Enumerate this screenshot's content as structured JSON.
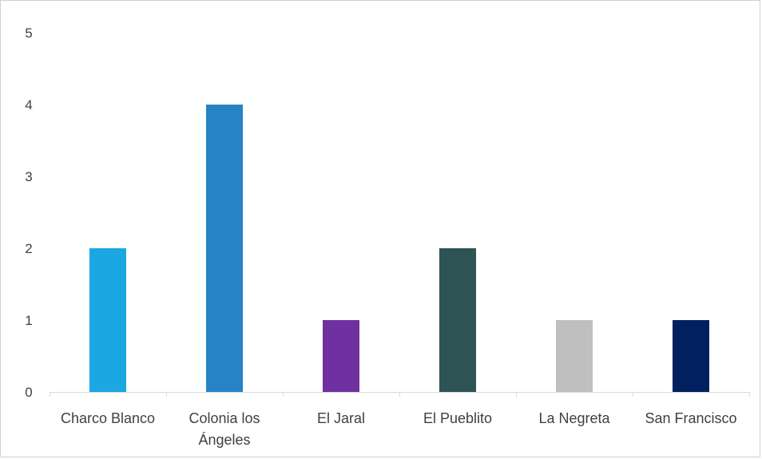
{
  "chart_data": {
    "type": "bar",
    "title": "",
    "xlabel": "",
    "ylabel": "",
    "categories": [
      "Charco Blanco",
      "Colonia los Ángeles",
      "El Jaral",
      "El Pueblito",
      "La Negreta",
      "San Francisco"
    ],
    "category_lines": [
      [
        "Charco Blanco"
      ],
      [
        "Colonia los",
        "Ángeles"
      ],
      [
        "El Jaral"
      ],
      [
        "El Pueblito"
      ],
      [
        "La Negreta"
      ],
      [
        "San Francisco"
      ]
    ],
    "values": [
      2,
      4,
      1,
      2,
      1,
      1
    ],
    "colors": [
      "#1aa7e2",
      "#2683c6",
      "#6f30a0",
      "#2e5355",
      "#bfbfbf",
      "#002060"
    ],
    "ylim": [
      0,
      5
    ],
    "yticks": [
      0,
      1,
      2,
      3,
      4,
      5
    ],
    "grid": false,
    "legend": "none"
  }
}
